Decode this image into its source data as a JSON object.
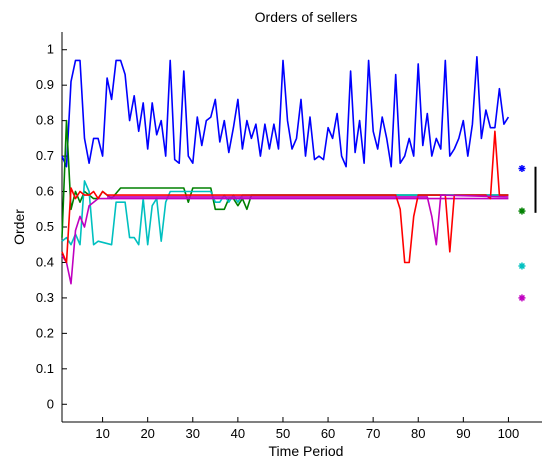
{
  "chart_data": {
    "type": "line",
    "title": "Orders of sellers",
    "xlabel": "Time Period",
    "ylabel": "Order",
    "xlim": [
      1,
      107
    ],
    "ylim": [
      -0.05,
      1.05
    ],
    "xticks": [
      10,
      20,
      30,
      40,
      50,
      60,
      70,
      80,
      90,
      100
    ],
    "yticks": [
      0,
      0.1,
      0.2,
      0.3,
      0.4,
      0.5,
      0.6,
      0.7,
      0.8,
      0.9,
      1
    ],
    "grid": false,
    "legend": "none",
    "series": [
      {
        "color": "#0000ff",
        "points": [
          [
            1,
            0.7
          ],
          [
            2,
            0.67
          ],
          [
            3,
            0.91
          ],
          [
            4,
            0.97
          ],
          [
            5,
            0.97
          ],
          [
            6,
            0.75
          ],
          [
            7,
            0.68
          ],
          [
            8,
            0.75
          ],
          [
            9,
            0.75
          ],
          [
            10,
            0.7
          ],
          [
            11,
            0.92
          ],
          [
            12,
            0.86
          ],
          [
            13,
            0.97
          ],
          [
            14,
            0.97
          ],
          [
            15,
            0.93
          ],
          [
            16,
            0.8
          ],
          [
            17,
            0.87
          ],
          [
            18,
            0.77
          ],
          [
            19,
            0.85
          ],
          [
            20,
            0.72
          ],
          [
            21,
            0.85
          ],
          [
            22,
            0.76
          ],
          [
            23,
            0.8
          ],
          [
            24,
            0.7
          ],
          [
            25,
            0.97
          ],
          [
            26,
            0.69
          ],
          [
            27,
            0.68
          ],
          [
            28,
            0.94
          ],
          [
            29,
            0.7
          ],
          [
            30,
            0.68
          ],
          [
            31,
            0.81
          ],
          [
            32,
            0.73
          ],
          [
            33,
            0.8
          ],
          [
            34,
            0.81
          ],
          [
            35,
            0.86
          ],
          [
            36,
            0.74
          ],
          [
            37,
            0.8
          ],
          [
            38,
            0.71
          ],
          [
            39,
            0.78
          ],
          [
            40,
            0.86
          ],
          [
            41,
            0.72
          ],
          [
            42,
            0.8
          ],
          [
            43,
            0.75
          ],
          [
            44,
            0.79
          ],
          [
            45,
            0.7
          ],
          [
            46,
            0.79
          ],
          [
            47,
            0.72
          ],
          [
            48,
            0.79
          ],
          [
            49,
            0.72
          ],
          [
            50,
            0.97
          ],
          [
            51,
            0.8
          ],
          [
            52,
            0.72
          ],
          [
            53,
            0.75
          ],
          [
            54,
            0.86
          ],
          [
            55,
            0.7
          ],
          [
            56,
            0.81
          ],
          [
            57,
            0.69
          ],
          [
            58,
            0.7
          ],
          [
            59,
            0.69
          ],
          [
            60,
            0.78
          ],
          [
            61,
            0.75
          ],
          [
            62,
            0.82
          ],
          [
            63,
            0.7
          ],
          [
            64,
            0.67
          ],
          [
            65,
            0.94
          ],
          [
            66,
            0.71
          ],
          [
            67,
            0.8
          ],
          [
            68,
            0.68
          ],
          [
            69,
            0.97
          ],
          [
            70,
            0.77
          ],
          [
            71,
            0.72
          ],
          [
            72,
            0.81
          ],
          [
            73,
            0.75
          ],
          [
            74,
            0.67
          ],
          [
            75,
            0.93
          ],
          [
            76,
            0.68
          ],
          [
            77,
            0.7
          ],
          [
            78,
            0.75
          ],
          [
            79,
            0.7
          ],
          [
            80,
            0.96
          ],
          [
            81,
            0.73
          ],
          [
            82,
            0.82
          ],
          [
            83,
            0.7
          ],
          [
            84,
            0.75
          ],
          [
            85,
            0.72
          ],
          [
            86,
            0.97
          ],
          [
            87,
            0.7
          ],
          [
            88,
            0.72
          ],
          [
            89,
            0.75
          ],
          [
            90,
            0.8
          ],
          [
            91,
            0.7
          ],
          [
            92,
            0.79
          ],
          [
            93,
            0.98
          ],
          [
            94,
            0.75
          ],
          [
            95,
            0.83
          ],
          [
            96,
            0.78
          ],
          [
            97,
            0.78
          ],
          [
            98,
            0.89
          ],
          [
            99,
            0.79
          ],
          [
            100,
            0.81
          ]
        ]
      },
      {
        "color": "#008000",
        "points": [
          [
            1,
            0.47
          ],
          [
            2,
            0.8
          ],
          [
            3,
            0.55
          ],
          [
            4,
            0.6
          ],
          [
            5,
            0.57
          ],
          [
            6,
            0.6
          ],
          [
            7,
            0.59
          ],
          [
            8,
            0.58
          ],
          [
            9,
            0.58
          ],
          [
            10,
            0.6
          ],
          [
            12,
            0.58
          ],
          [
            14,
            0.61
          ],
          [
            28,
            0.61
          ],
          [
            29,
            0.57
          ],
          [
            30,
            0.61
          ],
          [
            34,
            0.61
          ],
          [
            35,
            0.55
          ],
          [
            37,
            0.55
          ],
          [
            38,
            0.58
          ],
          [
            39,
            0.58
          ],
          [
            40,
            0.56
          ],
          [
            41,
            0.58
          ],
          [
            42,
            0.55
          ],
          [
            43,
            0.59
          ],
          [
            100,
            0.59
          ]
        ]
      },
      {
        "color": "#00c0c0",
        "points": [
          [
            1,
            0.46
          ],
          [
            2,
            0.47
          ],
          [
            3,
            0.45
          ],
          [
            4,
            0.48
          ],
          [
            5,
            0.45
          ],
          [
            6,
            0.63
          ],
          [
            7,
            0.6
          ],
          [
            8,
            0.45
          ],
          [
            9,
            0.46
          ],
          [
            12,
            0.45
          ],
          [
            13,
            0.57
          ],
          [
            15,
            0.57
          ],
          [
            16,
            0.47
          ],
          [
            17,
            0.47
          ],
          [
            18,
            0.45
          ],
          [
            19,
            0.58
          ],
          [
            20,
            0.45
          ],
          [
            21,
            0.56
          ],
          [
            22,
            0.58
          ],
          [
            23,
            0.46
          ],
          [
            24,
            0.57
          ],
          [
            25,
            0.6
          ],
          [
            34,
            0.6
          ],
          [
            35,
            0.57
          ],
          [
            36,
            0.57
          ],
          [
            37,
            0.59
          ],
          [
            38,
            0.57
          ],
          [
            39,
            0.59
          ],
          [
            40,
            0.57
          ],
          [
            41,
            0.59
          ],
          [
            100,
            0.59
          ]
        ]
      },
      {
        "color": "#c000c0",
        "points": [
          [
            1,
            0.42
          ],
          [
            2,
            0.4
          ],
          [
            3,
            0.34
          ],
          [
            4,
            0.49
          ],
          [
            5,
            0.53
          ],
          [
            6,
            0.5
          ],
          [
            7,
            0.56
          ],
          [
            8,
            0.57
          ],
          [
            9,
            0.58
          ],
          [
            10,
            0.58
          ],
          [
            100,
            0.58
          ]
        ]
      },
      {
        "color": "#ff0000",
        "points": [
          [
            1,
            0.43
          ],
          [
            2,
            0.4
          ],
          [
            3,
            0.61
          ],
          [
            4,
            0.58
          ],
          [
            5,
            0.6
          ],
          [
            6,
            0.59
          ],
          [
            7,
            0.59
          ],
          [
            8,
            0.6
          ],
          [
            9,
            0.58
          ],
          [
            10,
            0.6
          ],
          [
            11,
            0.59
          ],
          [
            12,
            0.59
          ],
          [
            75,
            0.59
          ],
          [
            76,
            0.55
          ],
          [
            77,
            0.4
          ],
          [
            78,
            0.4
          ],
          [
            79,
            0.53
          ],
          [
            80,
            0.59
          ],
          [
            86,
            0.59
          ],
          [
            87,
            0.43
          ],
          [
            88,
            0.59
          ],
          [
            95,
            0.59
          ],
          [
            96,
            0.58
          ],
          [
            97,
            0.77
          ],
          [
            98,
            0.59
          ],
          [
            100,
            0.59
          ]
        ]
      },
      {
        "color": "#c000c0",
        "points": [
          [
            11,
            0.585
          ],
          [
            82,
            0.585
          ],
          [
            83,
            0.53
          ],
          [
            84,
            0.45
          ],
          [
            85,
            0.59
          ],
          [
            100,
            0.585
          ]
        ]
      }
    ],
    "markers": [
      {
        "x": 103,
        "y": 0.665,
        "color": "#0000ff"
      },
      {
        "x": 103,
        "y": 0.545,
        "color": "#008000"
      },
      {
        "x": 103,
        "y": 0.39,
        "color": "#00c0c0"
      },
      {
        "x": 103,
        "y": 0.3,
        "color": "#c000c0"
      }
    ],
    "range_bar": {
      "x": 106,
      "y1": 0.67,
      "y2": 0.54,
      "color": "#000000"
    }
  }
}
